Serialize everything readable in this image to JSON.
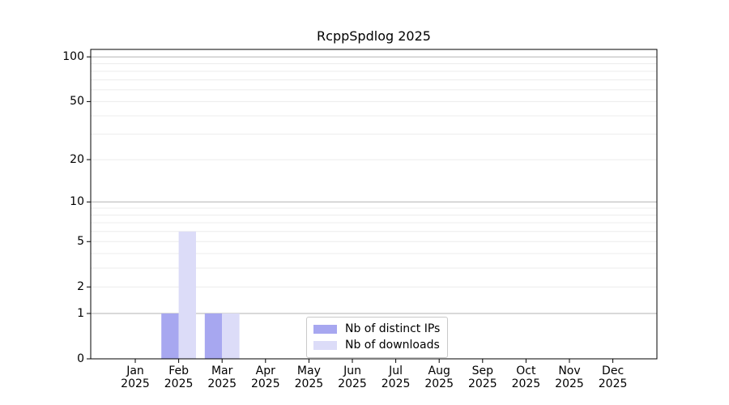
{
  "figure": {
    "background": "#ffffff"
  },
  "chart_data": {
    "type": "bar",
    "title": "RcppSpdlog 2025",
    "categories": [
      "Jan",
      "Feb",
      "Mar",
      "Apr",
      "May",
      "Jun",
      "Jul",
      "Aug",
      "Sep",
      "Oct",
      "Nov",
      "Dec"
    ],
    "x_year_label": "2025",
    "series": [
      {
        "name": "Nb of distinct IPs",
        "color": "#a7a7f0",
        "values": [
          0,
          1,
          1,
          0,
          0,
          0,
          0,
          0,
          0,
          0,
          0,
          0
        ]
      },
      {
        "name": "Nb of downloads",
        "color": "#dcdcf8",
        "values": [
          0,
          6,
          1,
          0,
          0,
          0,
          0,
          0,
          0,
          0,
          0,
          0
        ]
      }
    ],
    "yscale": "log1p",
    "yticks": [
      0,
      1,
      2,
      5,
      10,
      20,
      50,
      100
    ],
    "ylim": [
      0,
      112
    ],
    "grid": "horizontal",
    "grid_minor_values": [
      2,
      3,
      4,
      5,
      6,
      7,
      8,
      9,
      20,
      30,
      40,
      50,
      60,
      70,
      80,
      90
    ],
    "grid_major_values": [
      1,
      10,
      100
    ],
    "legend_position": "lower center",
    "colors": {
      "grid_major": "#b3b3b3",
      "grid_minor": "#ececec",
      "axis": "#000000",
      "text": "#000000",
      "legend_border": "#c9c9c9",
      "background": "#ffffff"
    }
  }
}
